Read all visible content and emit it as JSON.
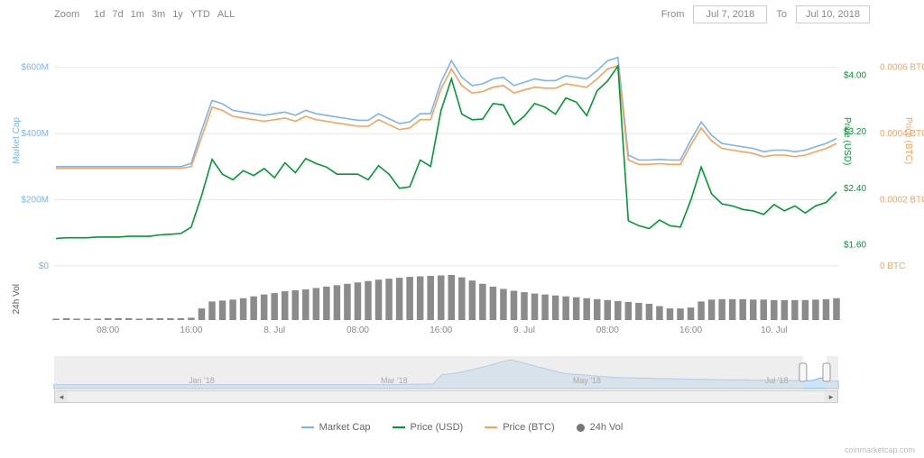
{
  "toolbar": {
    "zoom_label": "Zoom",
    "zoom_buttons": [
      "1d",
      "7d",
      "1m",
      "3m",
      "1y",
      "YTD",
      "ALL"
    ],
    "from_label": "From",
    "to_label": "To",
    "from_date": "Jul 7, 2018",
    "to_date": "Jul 10, 2018"
  },
  "axes": {
    "mcap_label": "Market Cap",
    "priceusd_label": "Price (USD)",
    "pricebtc_label": "Price (BTC)",
    "vol_label": "24h Vol",
    "mcap_ticks": [
      {
        "v": 0,
        "label": "$0"
      },
      {
        "v": 200000000,
        "label": "$200M"
      },
      {
        "v": 400000000,
        "label": "$400M"
      },
      {
        "v": 600000000,
        "label": "$600M"
      }
    ],
    "mcap_range": [
      0,
      640000000
    ],
    "priceusd_ticks": [
      {
        "v": 1.6,
        "label": "$1.60"
      },
      {
        "v": 2.4,
        "label": "$2.40"
      },
      {
        "v": 3.2,
        "label": "$3.20"
      },
      {
        "v": 4.0,
        "label": "$4.00"
      }
    ],
    "priceusd_range": [
      1.3,
      4.3
    ],
    "pricebtc_ticks": [
      {
        "v": 0,
        "label": "0 BTC"
      },
      {
        "v": 0.0002,
        "label": "0.0002 BTC"
      },
      {
        "v": 0.0004,
        "label": "0.0004 BTC"
      },
      {
        "v": 0.0006,
        "label": "0.0006 BTC"
      }
    ],
    "pricebtc_range": [
      0,
      0.00064
    ],
    "x_ticks": [
      {
        "i": 5,
        "label": "08:00"
      },
      {
        "i": 13,
        "label": "16:00"
      },
      {
        "i": 21,
        "label": "8. Jul"
      },
      {
        "i": 29,
        "label": "08:00"
      },
      {
        "i": 37,
        "label": "16:00"
      },
      {
        "i": 45,
        "label": "9. Jul"
      },
      {
        "i": 53,
        "label": "08:00"
      },
      {
        "i": 61,
        "label": "16:00"
      },
      {
        "i": 69,
        "label": "10. Jul"
      }
    ],
    "x_count": 76
  },
  "colors": {
    "mcap": "#7cb5ec",
    "priceusd": "#009933",
    "pricebtc": "#f7a35c",
    "vol_bar": "#777777",
    "grid": "#e6e6e6",
    "bg": "#ffffff",
    "nav_area": "#cde4f5",
    "nav_line": "#7cb5ec",
    "nav_mask": "#e0e0e0"
  },
  "legend": {
    "items": [
      {
        "name": "market-cap",
        "label": "Market Cap",
        "color": "#7cb5ec",
        "type": "line"
      },
      {
        "name": "price-usd",
        "label": "Price (USD)",
        "color": "#009933",
        "type": "line"
      },
      {
        "name": "price-btc",
        "label": "Price (BTC)",
        "color": "#f7a35c",
        "type": "line"
      },
      {
        "name": "24h-vol",
        "label": "24h Vol",
        "color": "#777777",
        "type": "dot"
      }
    ]
  },
  "series": {
    "mcap": [
      300,
      300,
      300,
      300,
      300,
      300,
      300,
      300,
      300,
      300,
      300,
      300,
      300,
      310,
      410,
      500,
      490,
      470,
      465,
      460,
      455,
      460,
      465,
      455,
      470,
      460,
      455,
      450,
      445,
      440,
      440,
      460,
      445,
      430,
      435,
      460,
      460,
      555,
      620,
      570,
      545,
      550,
      565,
      570,
      545,
      555,
      565,
      560,
      560,
      575,
      570,
      565,
      590,
      620,
      630,
      335,
      320,
      320,
      322,
      320,
      320,
      380,
      435,
      395,
      370,
      365,
      360,
      355,
      345,
      350,
      350,
      345,
      350,
      360,
      370,
      385
    ],
    "pricebtc": [
      0.000295,
      0.000295,
      0.000295,
      0.000295,
      0.000295,
      0.000295,
      0.000295,
      0.000295,
      0.000295,
      0.000295,
      0.000295,
      0.000295,
      0.000295,
      0.0003,
      0.00039,
      0.00048,
      0.00047,
      0.000452,
      0.000447,
      0.000442,
      0.000437,
      0.000442,
      0.000447,
      0.000437,
      0.000452,
      0.000442,
      0.000437,
      0.000432,
      0.000427,
      0.000422,
      0.000422,
      0.000442,
      0.000427,
      0.000412,
      0.000417,
      0.000442,
      0.000442,
      0.000535,
      0.000595,
      0.000545,
      0.000522,
      0.000527,
      0.00054,
      0.000545,
      0.000522,
      0.000532,
      0.00054,
      0.000537,
      0.000537,
      0.00055,
      0.000545,
      0.00054,
      0.000565,
      0.000595,
      0.000605,
      0.00032,
      0.000307,
      0.000307,
      0.000309,
      0.000307,
      0.000307,
      0.000365,
      0.000417,
      0.000378,
      0.000355,
      0.00035,
      0.000345,
      0.00034,
      0.00033,
      0.000335,
      0.000335,
      0.00033,
      0.000335,
      0.000345,
      0.000355,
      0.00037
    ],
    "priceusd": [
      1.69,
      1.7,
      1.7,
      1.7,
      1.71,
      1.71,
      1.71,
      1.72,
      1.72,
      1.72,
      1.74,
      1.75,
      1.76,
      1.85,
      2.3,
      2.81,
      2.6,
      2.52,
      2.65,
      2.58,
      2.68,
      2.55,
      2.76,
      2.62,
      2.82,
      2.75,
      2.7,
      2.6,
      2.6,
      2.6,
      2.52,
      2.72,
      2.6,
      2.4,
      2.42,
      2.8,
      2.71,
      3.5,
      3.95,
      3.45,
      3.37,
      3.38,
      3.6,
      3.58,
      3.3,
      3.42,
      3.6,
      3.55,
      3.45,
      3.68,
      3.62,
      3.43,
      3.78,
      3.92,
      4.13,
      1.94,
      1.87,
      1.83,
      1.95,
      1.87,
      1.85,
      2.23,
      2.7,
      2.32,
      2.18,
      2.15,
      2.1,
      2.08,
      2.03,
      2.17,
      2.08,
      2.15,
      2.05,
      2.15,
      2.2,
      2.35
    ],
    "vol": [
      0.03,
      0.04,
      0.03,
      0.03,
      0.03,
      0.04,
      0.04,
      0.04,
      0.03,
      0.04,
      0.04,
      0.04,
      0.04,
      0.05,
      0.25,
      0.4,
      0.42,
      0.44,
      0.47,
      0.51,
      0.55,
      0.58,
      0.62,
      0.64,
      0.66,
      0.69,
      0.72,
      0.75,
      0.78,
      0.81,
      0.84,
      0.87,
      0.89,
      0.91,
      0.93,
      0.94,
      0.95,
      0.96,
      0.97,
      0.92,
      0.85,
      0.78,
      0.72,
      0.67,
      0.63,
      0.6,
      0.57,
      0.55,
      0.53,
      0.51,
      0.49,
      0.47,
      0.45,
      0.43,
      0.41,
      0.39,
      0.37,
      0.35,
      0.3,
      0.25,
      0.25,
      0.27,
      0.4,
      0.44,
      0.45,
      0.45,
      0.45,
      0.44,
      0.44,
      0.43,
      0.43,
      0.43,
      0.43,
      0.44,
      0.45,
      0.47
    ]
  },
  "navigator": {
    "labels": [
      "Jan '18",
      "Mar '18",
      "May '18",
      "Jul '18"
    ],
    "series": [
      0.1,
      0.1,
      0.1,
      0.1,
      0.1,
      0.1,
      0.1,
      0.1,
      0.1,
      0.1,
      0.1,
      0.1,
      0.1,
      0.1,
      0.1,
      0.1,
      0.1,
      0.1,
      0.1,
      0.1,
      0.1,
      0.1,
      0.1,
      0.1,
      0.1,
      0.1,
      0.1,
      0.1,
      0.1,
      0.1,
      0.1,
      0.1,
      0.1,
      0.1,
      0.1,
      0.1,
      0.1,
      0.1,
      0.1,
      0.1,
      0.1,
      0.11,
      0.11,
      0.11,
      0.12,
      0.35,
      0.37,
      0.4,
      0.45,
      0.5,
      0.55,
      0.61,
      0.67,
      0.72,
      0.67,
      0.61,
      0.55,
      0.5,
      0.44,
      0.39,
      0.36,
      0.35,
      0.33,
      0.31,
      0.3,
      0.28,
      0.27,
      0.27,
      0.26,
      0.26,
      0.25,
      0.25,
      0.24,
      0.24,
      0.23,
      0.23,
      0.23,
      0.22,
      0.22,
      0.22,
      0.22,
      0.21,
      0.21,
      0.21,
      0.21,
      0.21,
      0.2,
      0.2,
      0.2,
      0.27,
      0.19,
      0.19
    ],
    "window": [
      0.955,
      0.985
    ]
  },
  "watermark": "coinmarketcap.com"
}
